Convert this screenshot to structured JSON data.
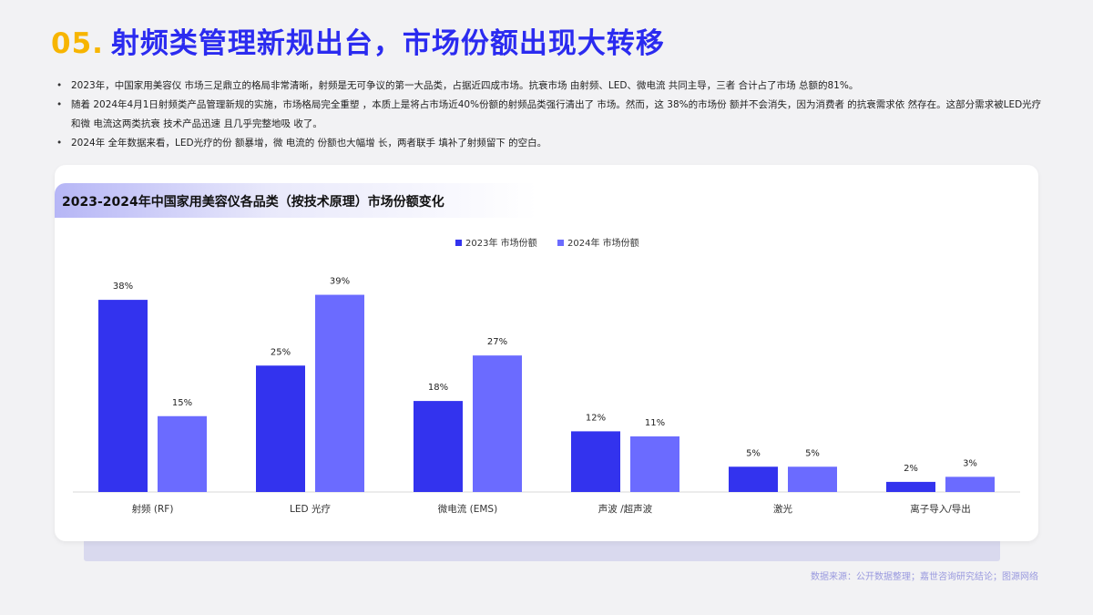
{
  "header": {
    "number": "05.",
    "title": "射频类管理新规出台，市场份额出现大转移"
  },
  "bullets": [
    "2023年，中国家用美容仪 市场三足鼎立的格局非常清晰，射频是无可争议的第一大品类，占据近四成市场。抗衰市场 由射频、LED、微电流 共同主导，三者 合计占了市场 总额的81%。",
    "随着 2024年4月1日射频类产品管理新规的实施，市场格局完全重塑 ，本质上是将占市场近40%份额的射频品类强行清出了 市场。然而，这 38%的市场份 额并不会消失，因为消费者 的抗衰需求依 然存在。这部分需求被LED光疗和微 电流这两类抗衰 技术产品迅速 且几乎完整地吸 收了。",
    "2024年 全年数据来看，LED光疗的份 额暴增，微 电流的 份额也大幅增 长，两者联手 填补了射频留下 的空白。"
  ],
  "card": {
    "title": "2023-2024年中国家用美容仪各品类（按技术原理）市场份额变化"
  },
  "colors": {
    "series_2023": "#3333ee",
    "series_2024": "#6b6bff",
    "title_accent": "#f7b500",
    "title_main": "#2b2bf0"
  },
  "chart_data": {
    "type": "bar",
    "categories": [
      "射频 (RF)",
      "LED 光疗",
      "微电流 (EMS)",
      "声波 /超声波",
      "激光",
      "离子导入/导出"
    ],
    "series": [
      {
        "name": "2023年 市场份额",
        "values": [
          38,
          25,
          18,
          12,
          5,
          2
        ]
      },
      {
        "name": "2024年 市场份额",
        "values": [
          15,
          39,
          27,
          11,
          5,
          3
        ]
      }
    ],
    "value_suffix": "%",
    "ylim": [
      0,
      40
    ],
    "grid": false,
    "legend": "top-center"
  },
  "source": "数据来源：公开数据整理；嘉世咨询研究结论；图源网络"
}
